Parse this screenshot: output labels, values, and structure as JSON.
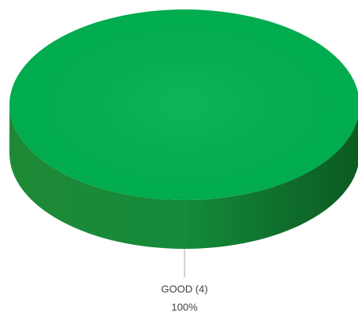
{
  "chart_data": {
    "type": "pie",
    "categories": [
      "GOOD (4)"
    ],
    "values": [
      100
    ],
    "value_labels": [
      "100%"
    ],
    "colors": [
      "#00b050"
    ]
  }
}
